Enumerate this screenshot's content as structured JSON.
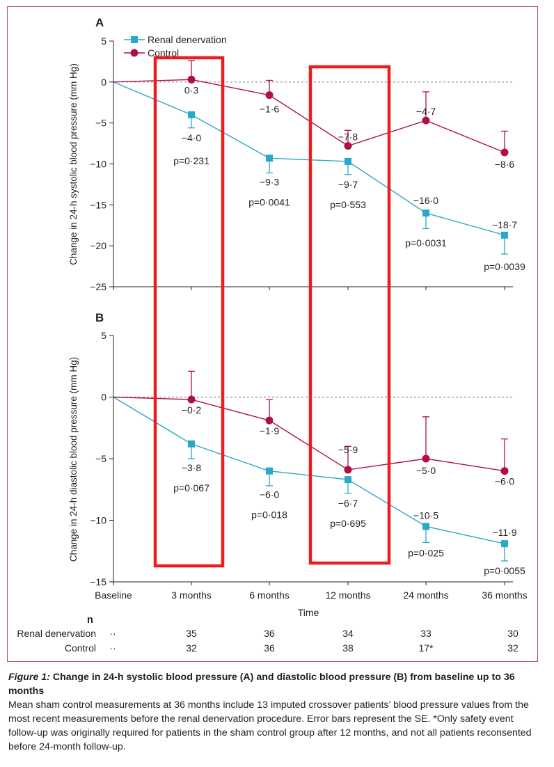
{
  "chart_data": [
    {
      "panel": "A",
      "type": "line",
      "ylabel": "Change in 24-h systolic blood pressure (mm Hg)",
      "ylim": [
        -25,
        5
      ],
      "yticks": [
        "5",
        "0",
        "-5",
        "-10",
        "-15",
        "-20",
        "-25"
      ],
      "ytick_values": [
        5,
        0,
        -5,
        -10,
        -15,
        -20,
        -25
      ],
      "categories": [
        "Baseline",
        "3 months",
        "6 months",
        "12 months",
        "24 months",
        "36 months"
      ],
      "series": [
        {
          "name": "Renal denervation",
          "color": "#2aa8c8",
          "values": [
            0,
            -4.0,
            -9.3,
            -9.7,
            -16.0,
            -18.7
          ],
          "labels": [
            "",
            "-4·0",
            "-9·3",
            "-9·7",
            "-16·0",
            "-18·7"
          ],
          "se": [
            0,
            1.6,
            1.8,
            1.6,
            1.9,
            2.3
          ]
        },
        {
          "name": "Control",
          "color": "#b0103f",
          "values": [
            0,
            0.3,
            -1.6,
            -7.8,
            -4.7,
            -8.6
          ],
          "labels": [
            "",
            "0·3",
            "-1·6",
            "-7·8",
            "-4·7",
            "-8·6"
          ],
          "se": [
            0,
            2.3,
            1.8,
            1.9,
            3.5,
            2.6
          ]
        }
      ],
      "pvalues": [
        "",
        "p=0·231",
        "p=0·0041",
        "p=0·553",
        "p=0·0031",
        "p=0·0039"
      ]
    },
    {
      "panel": "B",
      "type": "line",
      "ylabel": "Change in 24-h diastolic blood pressure (mm Hg)",
      "ylim": [
        -15,
        5
      ],
      "yticks": [
        "5",
        "0",
        "-5",
        "-10",
        "-15"
      ],
      "ytick_values": [
        5,
        0,
        -5,
        -10,
        -15
      ],
      "categories": [
        "Baseline",
        "3 months",
        "6 months",
        "12 months",
        "24 months",
        "36 months"
      ],
      "xlabel": "Time",
      "series": [
        {
          "name": "Renal denervation",
          "color": "#2aa8c8",
          "values": [
            0,
            -3.8,
            -6.0,
            -6.7,
            -10.5,
            -11.9
          ],
          "labels": [
            "",
            "-3·8",
            "-6·0",
            "-6·7",
            "-10·5",
            "-11·9"
          ],
          "se": [
            0,
            1.2,
            1.2,
            1.1,
            1.3,
            1.4
          ]
        },
        {
          "name": "Control",
          "color": "#b0103f",
          "values": [
            0,
            -0.2,
            -1.9,
            -5.9,
            -5.0,
            -6.0
          ],
          "labels": [
            "",
            "-0·2",
            "-1·9",
            "-5·9",
            "-5·0",
            "-6·0"
          ],
          "se": [
            0,
            2.3,
            1.7,
            1.9,
            3.4,
            2.6
          ]
        }
      ],
      "pvalues": [
        "",
        "p=0·067",
        "p=0·018",
        "p=0·695",
        "p=0·025",
        "p=0·0055"
      ]
    }
  ],
  "highlight_color": "#ee1c1c",
  "n_table": {
    "header": "n",
    "dots": "··",
    "rows": [
      {
        "label": "Renal denervation",
        "values": [
          "35",
          "36",
          "34",
          "33",
          "30"
        ]
      },
      {
        "label": "Control",
        "values": [
          "32",
          "36",
          "38",
          "17*",
          "32"
        ]
      }
    ]
  },
  "caption": {
    "label": "Figure 1:",
    "title": "Change in 24-h systolic blood pressure (A) and diastolic blood pressure (B) from baseline up to 36 months",
    "body": "Mean sham control measurements at 36 months include 13 imputed crossover patients’ blood pressure values from the most recent measurements before the renal denervation procedure. Error bars represent the SE. *Only safety event follow-up was originally required for patients in the sham control group after 12 months, and not all patients reconsented before 24-month follow-up."
  }
}
